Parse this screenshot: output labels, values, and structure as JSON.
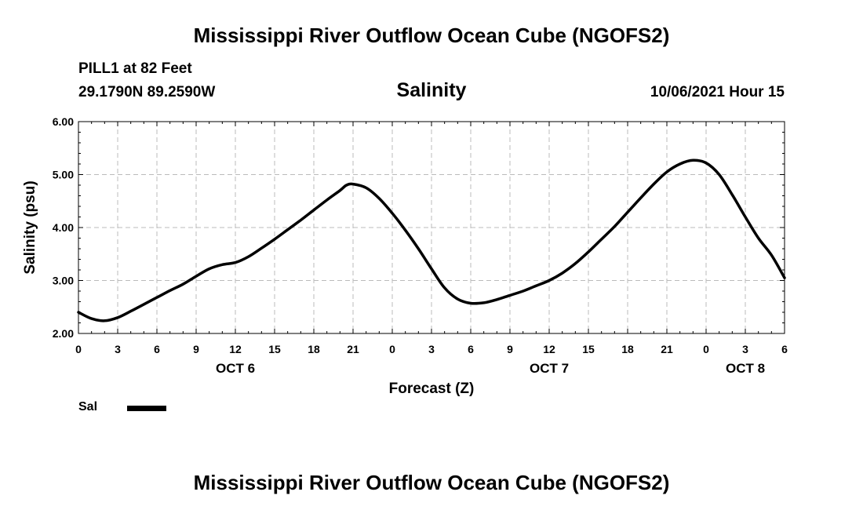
{
  "header": {
    "title": "Mississippi River Outflow Ocean Cube (NGOFS2)",
    "station": "PILL1 at 82 Feet",
    "coords": "29.1790N  89.2590W",
    "subtitle": "Salinity",
    "datetime": "10/06/2021 Hour 15"
  },
  "footer": {
    "title": "Mississippi River Outflow Ocean Cube (NGOFS2)"
  },
  "legend": {
    "label": "Sal",
    "color": "#000000"
  },
  "chart_data": {
    "type": "line",
    "title": "Salinity",
    "xlabel": "Forecast (Z)",
    "ylabel": "Salinity (psu)",
    "ylim": [
      2.0,
      6.0
    ],
    "xlim": [
      0,
      54
    ],
    "x_unit": "hours from 00Z Oct 6",
    "grid": true,
    "yticks": [
      "2.00",
      "3.00",
      "4.00",
      "5.00",
      "6.00"
    ],
    "xticks": [
      {
        "x": 0,
        "label": "0"
      },
      {
        "x": 3,
        "label": "3"
      },
      {
        "x": 6,
        "label": "6"
      },
      {
        "x": 9,
        "label": "9"
      },
      {
        "x": 12,
        "label": "12"
      },
      {
        "x": 15,
        "label": "15"
      },
      {
        "x": 18,
        "label": "18"
      },
      {
        "x": 21,
        "label": "21"
      },
      {
        "x": 24,
        "label": "0"
      },
      {
        "x": 27,
        "label": "3"
      },
      {
        "x": 30,
        "label": "6"
      },
      {
        "x": 33,
        "label": "9"
      },
      {
        "x": 36,
        "label": "12"
      },
      {
        "x": 39,
        "label": "15"
      },
      {
        "x": 42,
        "label": "18"
      },
      {
        "x": 45,
        "label": "21"
      },
      {
        "x": 48,
        "label": "0"
      },
      {
        "x": 51,
        "label": "3"
      },
      {
        "x": 54,
        "label": "6"
      }
    ],
    "day_labels": [
      {
        "x": 12,
        "label": "OCT 6"
      },
      {
        "x": 36,
        "label": "OCT 7"
      },
      {
        "x": 51,
        "label": "OCT 8"
      }
    ],
    "series": [
      {
        "name": "Sal",
        "x": [
          0,
          1,
          2,
          3,
          4,
          5,
          6,
          7,
          8,
          9,
          10,
          11,
          12,
          13,
          14,
          15,
          16,
          17,
          18,
          19,
          20,
          20.5,
          21,
          22,
          23,
          24,
          25,
          26,
          27,
          28,
          29,
          30,
          31,
          32,
          33,
          34,
          35,
          36,
          37,
          38,
          39,
          40,
          41,
          42,
          43,
          44,
          45,
          46,
          47,
          48,
          49,
          50,
          51,
          52,
          53,
          54
        ],
        "values": [
          2.4,
          2.28,
          2.24,
          2.3,
          2.42,
          2.55,
          2.68,
          2.81,
          2.93,
          3.08,
          3.22,
          3.3,
          3.34,
          3.45,
          3.61,
          3.78,
          3.96,
          4.14,
          4.33,
          4.52,
          4.7,
          4.8,
          4.82,
          4.75,
          4.55,
          4.27,
          3.95,
          3.6,
          3.22,
          2.86,
          2.65,
          2.57,
          2.58,
          2.64,
          2.72,
          2.8,
          2.9,
          3.0,
          3.14,
          3.32,
          3.54,
          3.78,
          4.02,
          4.29,
          4.56,
          4.82,
          5.05,
          5.2,
          5.27,
          5.22,
          5.0,
          4.62,
          4.2,
          3.8,
          3.48,
          3.05
        ]
      }
    ]
  }
}
